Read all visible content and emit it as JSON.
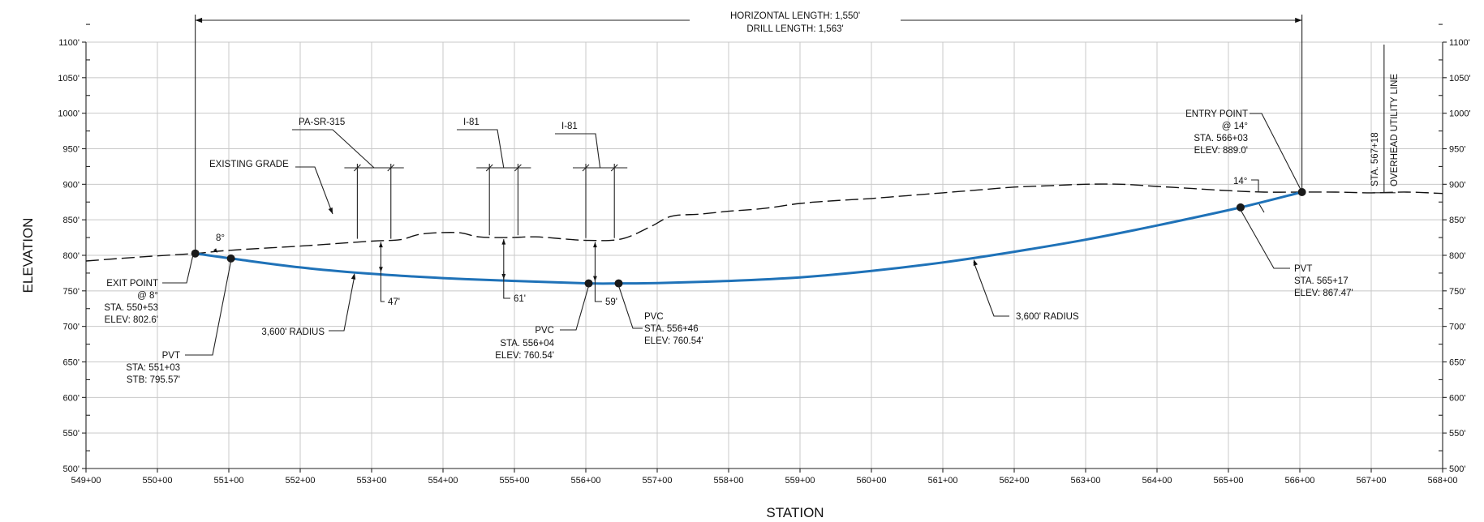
{
  "diagram": {
    "x_axis_title": "STATION",
    "y_axis_title": "ELEVATION",
    "x_ticks": [
      "549+00",
      "550+00",
      "551+00",
      "552+00",
      "553+00",
      "554+00",
      "555+00",
      "556+00",
      "557+00",
      "558+00",
      "559+00",
      "560+00",
      "561+00",
      "562+00",
      "563+00",
      "564+00",
      "565+00",
      "566+00",
      "567+00",
      "568+00"
    ],
    "y_ticks": [
      "500'",
      "550'",
      "600'",
      "650'",
      "700'",
      "750'",
      "800'",
      "850'",
      "900'",
      "950'",
      "1000'",
      "1050'",
      "1100'"
    ],
    "xlim": [
      549,
      568
    ],
    "ylim": [
      500,
      1100
    ],
    "dimension": {
      "line1": "HORIZONTAL LENGTH: 1,550'",
      "line2": "DRILL LENGTH: 1,563'"
    },
    "existing_grade": {
      "label": "EXISTING GRADE",
      "points": [
        [
          549.0,
          792
        ],
        [
          549.8,
          798
        ],
        [
          550.53,
          802.6
        ],
        [
          551.0,
          807
        ],
        [
          552.0,
          813
        ],
        [
          553.0,
          820
        ],
        [
          553.4,
          822
        ],
        [
          553.7,
          830
        ],
        [
          554.2,
          832
        ],
        [
          554.5,
          826
        ],
        [
          554.9,
          825
        ],
        [
          555.3,
          826
        ],
        [
          555.7,
          823
        ],
        [
          556.05,
          821
        ],
        [
          556.5,
          823
        ],
        [
          556.9,
          840
        ],
        [
          557.2,
          855
        ],
        [
          557.6,
          858
        ],
        [
          558.0,
          862
        ],
        [
          558.5,
          866
        ],
        [
          559.0,
          873
        ],
        [
          559.5,
          877
        ],
        [
          560.0,
          880
        ],
        [
          560.5,
          884
        ],
        [
          561.0,
          888
        ],
        [
          561.5,
          892
        ],
        [
          562.0,
          896
        ],
        [
          562.5,
          898
        ],
        [
          563.0,
          900
        ],
        [
          563.5,
          900
        ],
        [
          564.0,
          897
        ],
        [
          564.5,
          894
        ],
        [
          565.0,
          891
        ],
        [
          565.5,
          889
        ],
        [
          566.03,
          889
        ],
        [
          566.5,
          889
        ],
        [
          567.0,
          888
        ],
        [
          567.5,
          889
        ],
        [
          568.0,
          887
        ]
      ]
    },
    "bore_path": {
      "points": [
        [
          550.53,
          802.6
        ],
        [
          551.03,
          795.57
        ],
        [
          552.0,
          783
        ],
        [
          553.0,
          774
        ],
        [
          554.0,
          768
        ],
        [
          555.0,
          764
        ],
        [
          556.04,
          760.54
        ],
        [
          556.46,
          760.54
        ],
        [
          557.0,
          761
        ],
        [
          558.0,
          764
        ],
        [
          559.0,
          769
        ],
        [
          560.0,
          778
        ],
        [
          561.0,
          790
        ],
        [
          562.0,
          805
        ],
        [
          563.0,
          822
        ],
        [
          564.0,
          842
        ],
        [
          565.17,
          867.47
        ],
        [
          566.03,
          889.0
        ]
      ]
    },
    "crossings": [
      {
        "label": "PA-SR-315",
        "x_left": 552.8,
        "x_right": 553.27,
        "grade": 821
      },
      {
        "label": "I-81",
        "x_left": 554.65,
        "x_right": 555.05,
        "grade": 826
      },
      {
        "label": "I-81",
        "x_left": 556.0,
        "x_right": 556.4,
        "grade": 822
      }
    ],
    "clearances": [
      {
        "label": "47'",
        "x": 553.13,
        "top": 821,
        "bottom": 774
      },
      {
        "label": "61'",
        "x": 554.85,
        "top": 825,
        "bottom": 764
      },
      {
        "label": "59'",
        "x": 556.13,
        "top": 821,
        "bottom": 761
      }
    ],
    "exit_point": {
      "x": 550.53,
      "y": 802.6,
      "angle_label": "8°",
      "lines": [
        "EXIT POINT",
        "@ 8°",
        "STA. 550+53",
        "ELEV: 802.6'"
      ]
    },
    "pvt_left": {
      "x": 551.03,
      "y": 795.57,
      "lines": [
        "PVT",
        "STA:  551+03",
        "STB:   795.57'"
      ]
    },
    "pvc_left": {
      "x": 556.04,
      "y": 760.54,
      "lines": [
        "PVC",
        "STA. 556+04",
        "ELEV: 760.54'"
      ]
    },
    "pvc_right": {
      "x": 556.46,
      "y": 760.54,
      "lines": [
        "PVC",
        "STA.  556+46",
        "ELEV: 760.54'"
      ]
    },
    "pvt_right": {
      "x": 565.17,
      "y": 867.47,
      "lines": [
        "PVT",
        "STA.  565+17",
        "ELEV: 867.47'"
      ]
    },
    "entry_point": {
      "x": 566.03,
      "y": 889.0,
      "angle_label": "14°",
      "lines": [
        "ENTRY POINT",
        "@ 14°",
        "STA. 566+03",
        "ELEV: 889.0'"
      ]
    },
    "radius_left": "3,600' RADIUS",
    "radius_right": "3,600' RADIUS",
    "overhead_utility": {
      "x": 567.18,
      "station_label": "STA.  567+18",
      "label": "OVERHEAD UTILITY LINE"
    }
  }
}
